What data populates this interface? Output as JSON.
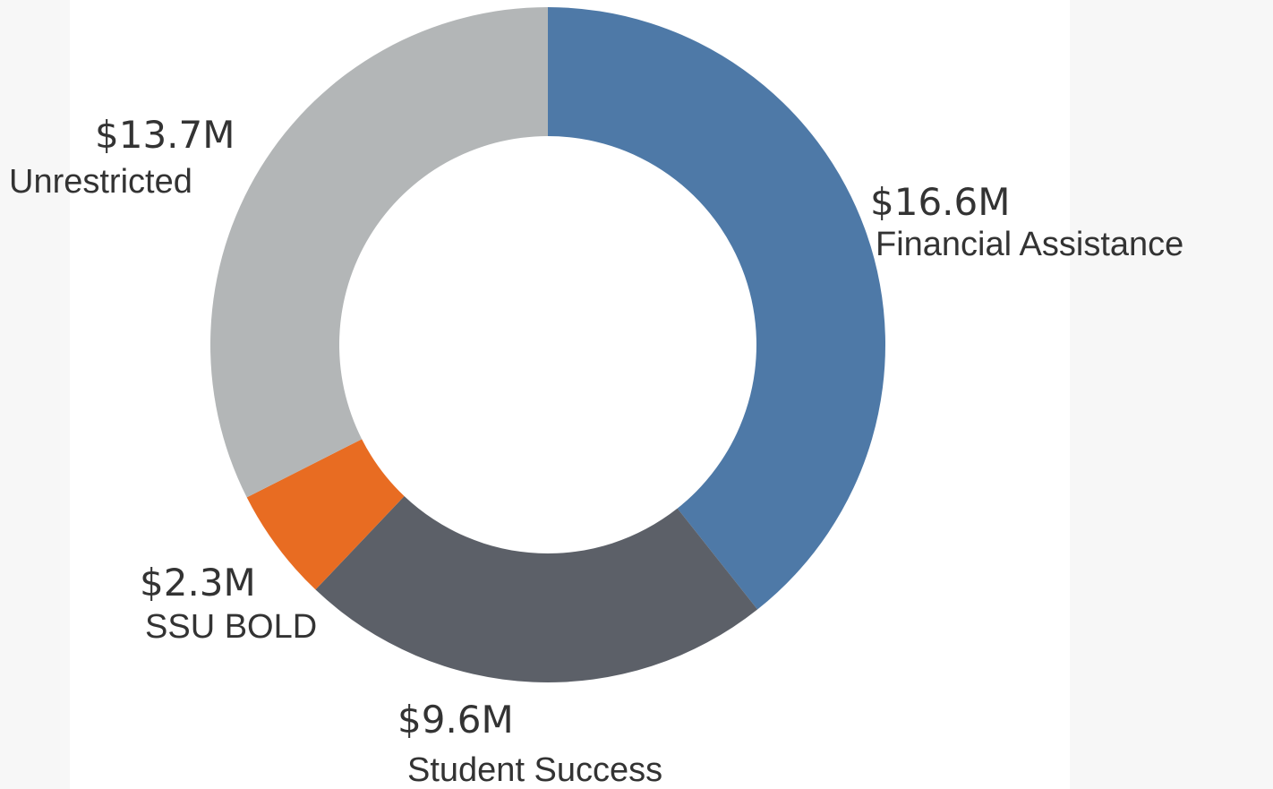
{
  "chart_data": {
    "type": "donut",
    "categories": [
      "Financial Assistance",
      "Student Success",
      "SSU BOLD",
      "Unrestricted"
    ],
    "values": [
      16.6,
      9.6,
      2.3,
      13.7
    ],
    "value_labels": [
      "$16.6M",
      "$9.6M",
      "$2.3M",
      "$13.7M"
    ],
    "colors": [
      "#4e79a7",
      "#5c6068",
      "#e86c22",
      "#b3b6b7"
    ]
  }
}
